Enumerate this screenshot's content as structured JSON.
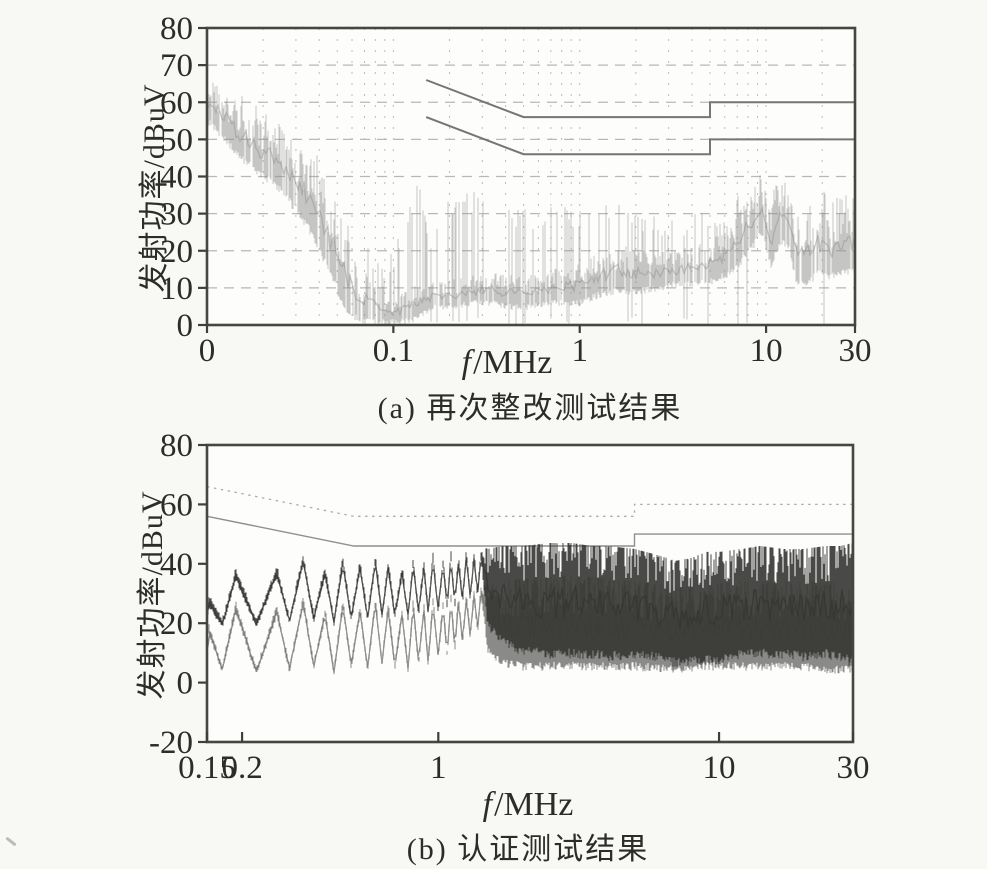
{
  "page": {
    "background": "#f8f8f5"
  },
  "chart_data": [
    {
      "type": "line",
      "id": "a",
      "caption": "(a) 再次整改测试结果",
      "xlabel_var": "f",
      "xlabel_unit": "/MHz",
      "ylabel": "发射功率/dBuV",
      "xscale": "log",
      "xlim": [
        0.01,
        30
      ],
      "ylim": [
        0,
        80
      ],
      "grid": true,
      "legend_position": "none",
      "xticks": [
        {
          "v": 0.01,
          "label": "0"
        },
        {
          "v": 0.1,
          "label": "0.1"
        },
        {
          "v": 1,
          "label": "1"
        },
        {
          "v": 10,
          "label": "10"
        },
        {
          "v": 30,
          "label": "30"
        }
      ],
      "yticks": [
        {
          "v": 0,
          "label": "0"
        },
        {
          "v": 10,
          "label": "10"
        },
        {
          "v": 20,
          "label": "20"
        },
        {
          "v": 30,
          "label": "30"
        },
        {
          "v": 40,
          "label": "40"
        },
        {
          "v": 50,
          "label": "50"
        },
        {
          "v": 60,
          "label": "60"
        },
        {
          "v": 70,
          "label": "70"
        },
        {
          "v": 80,
          "label": "80"
        }
      ],
      "limit_lines": [
        {
          "name": "quasi_peak_limit",
          "style": "solid",
          "color": "#757573",
          "points": [
            [
              0.15,
              66
            ],
            [
              0.5,
              56
            ],
            [
              5,
              56
            ],
            [
              5,
              60
            ],
            [
              30,
              60
            ]
          ]
        },
        {
          "name": "average_limit",
          "style": "solid",
          "color": "#757573",
          "points": [
            [
              0.15,
              56
            ],
            [
              0.5,
              46
            ],
            [
              5,
              46
            ],
            [
              5,
              50
            ],
            [
              30,
              50
            ]
          ]
        }
      ],
      "series": [
        {
          "name": "emission_trace",
          "color": "#8e8e8c",
          "opacity": 0.5,
          "top_bias": 0.5,
          "gap_p": 0.15,
          "envelope": [
            [
              0.01,
              54,
              66,
              66,
              0
            ],
            [
              0.012,
              50,
              63,
              63,
              0
            ],
            [
              0.015,
              44,
              59,
              60,
              0.2
            ],
            [
              0.019,
              40,
              55,
              56,
              0.2
            ],
            [
              0.024,
              36,
              52,
              53,
              0.2
            ],
            [
              0.03,
              30,
              49,
              50,
              0.2
            ],
            [
              0.038,
              22,
              42,
              44,
              0.2
            ],
            [
              0.048,
              10,
              32,
              34,
              0.2
            ],
            [
              0.058,
              2,
              22,
              26,
              0.2
            ],
            [
              0.068,
              0,
              12,
              18,
              0.2
            ],
            [
              0.078,
              0,
              16,
              20,
              0.2
            ],
            [
              0.088,
              0,
              7,
              12,
              0.15
            ],
            [
              0.1,
              0,
              6,
              18,
              0.25
            ],
            [
              0.115,
              0,
              9,
              26,
              0.3
            ],
            [
              0.135,
              1,
              11,
              36,
              0.25
            ],
            [
              0.16,
              4,
              11,
              22,
              0.25
            ],
            [
              0.2,
              4,
              12,
              32,
              0.3
            ],
            [
              0.26,
              5,
              13,
              33,
              0.3
            ],
            [
              0.33,
              5,
              14,
              32,
              0.3
            ],
            [
              0.42,
              4,
              13,
              30,
              0.28
            ],
            [
              0.52,
              4,
              13,
              28,
              0.28
            ],
            [
              0.65,
              5,
              14,
              29,
              0.3
            ],
            [
              0.8,
              5,
              15,
              30,
              0.3
            ],
            [
              1.0,
              5,
              16,
              29,
              0.32
            ],
            [
              1.25,
              7,
              19,
              30,
              0.35
            ],
            [
              1.6,
              8,
              21,
              30,
              0.35
            ],
            [
              2.0,
              8,
              20,
              28,
              0.3
            ],
            [
              2.6,
              9,
              19,
              26,
              0.3
            ],
            [
              3.3,
              10,
              20,
              25,
              0.28
            ],
            [
              4.2,
              10,
              21,
              27,
              0.28
            ],
            [
              5.2,
              11,
              23,
              28,
              0.28
            ],
            [
              6.5,
              13,
              27,
              31,
              0.25
            ],
            [
              8.0,
              18,
              34,
              36,
              0.2
            ],
            [
              9.5,
              24,
              41,
              41,
              0
            ],
            [
              10.6,
              15,
              30,
              33,
              0.2
            ],
            [
              11.8,
              21,
              37,
              38,
              0
            ],
            [
              13.0,
              21,
              38,
              38,
              0
            ],
            [
              14.5,
              11,
              29,
              32,
              0.2
            ],
            [
              16.5,
              10,
              28,
              32,
              0.25
            ],
            [
              19,
              13,
              31,
              34,
              0.22
            ],
            [
              22,
              12,
              29,
              33,
              0.25
            ],
            [
              26,
              13,
              30,
              33,
              0.25
            ],
            [
              30,
              14,
              30,
              32,
              0.2
            ]
          ]
        }
      ]
    },
    {
      "type": "line",
      "id": "b",
      "caption": "(b) 认证测试结果",
      "xlabel_var": "f",
      "xlabel_unit": "/MHz",
      "ylabel": "发射功率/dBuV",
      "xscale": "log",
      "xlim": [
        0.15,
        30
      ],
      "ylim": [
        -20,
        80
      ],
      "grid": false,
      "legend_position": "none",
      "xticks": [
        {
          "v": 0.15,
          "label": "0.15"
        },
        {
          "v": 0.2,
          "label": "0.2"
        },
        {
          "v": 1,
          "label": "1"
        },
        {
          "v": 10,
          "label": "10"
        },
        {
          "v": 30,
          "label": "30"
        }
      ],
      "yticks": [
        {
          "v": -20,
          "label": "-20"
        },
        {
          "v": 0,
          "label": "0"
        },
        {
          "v": 20,
          "label": "20"
        },
        {
          "v": 40,
          "label": "40"
        },
        {
          "v": 60,
          "label": "60"
        },
        {
          "v": 80,
          "label": "80"
        }
      ],
      "limit_lines": [
        {
          "name": "quasi_peak_limit",
          "style": "dotted",
          "color": "#acacaa",
          "points": [
            [
              0.15,
              66
            ],
            [
              0.5,
              56
            ],
            [
              5,
              56
            ],
            [
              5,
              60
            ],
            [
              30,
              60
            ]
          ]
        },
        {
          "name": "average_limit",
          "style": "solid",
          "color": "#8f8f8d",
          "points": [
            [
              0.15,
              56
            ],
            [
              0.5,
              46
            ],
            [
              5,
              46
            ],
            [
              5,
              50
            ],
            [
              30,
              50
            ]
          ]
        }
      ],
      "series": [
        {
          "name": "average_trace",
          "color": "#757573",
          "opacity": 0.85,
          "top_bias": 0.6,
          "gap_p": 0,
          "envelope": [
            [
              0.15,
              2,
              5
            ],
            [
              0.152,
              16,
              20
            ],
            [
              0.17,
              3,
              6
            ],
            [
              0.19,
              23,
              27
            ],
            [
              0.225,
              2,
              5
            ],
            [
              0.266,
              22,
              26
            ],
            [
              0.295,
              3,
              6
            ],
            [
              0.33,
              25,
              29
            ],
            [
              0.36,
              4,
              7
            ],
            [
              0.395,
              21,
              25
            ],
            [
              0.425,
              2,
              5
            ],
            [
              0.457,
              24,
              28
            ],
            [
              0.49,
              4,
              7
            ],
            [
              0.526,
              22,
              26
            ],
            [
              0.56,
              3,
              6
            ],
            [
              0.597,
              25,
              29
            ],
            [
              0.63,
              5,
              8
            ],
            [
              0.663,
              23,
              27
            ],
            [
              0.7,
              4,
              7
            ],
            [
              0.743,
              21,
              25
            ],
            [
              0.78,
              3,
              6
            ],
            [
              0.814,
              24,
              28
            ],
            [
              0.85,
              5,
              8
            ],
            [
              0.888,
              23,
              27
            ],
            [
              0.92,
              5,
              8
            ],
            [
              0.957,
              25,
              29
            ],
            [
              1.0,
              7,
              10
            ],
            [
              1.039,
              24,
              28
            ],
            [
              1.075,
              8,
              11
            ],
            [
              1.109,
              26,
              30
            ],
            [
              1.145,
              10,
              13
            ],
            [
              1.18,
              26,
              30
            ],
            [
              1.22,
              12,
              15
            ],
            [
              1.26,
              27,
              31
            ],
            [
              1.3,
              14,
              17
            ],
            [
              1.34,
              28,
              32
            ],
            [
              1.38,
              16,
              19
            ],
            [
              1.42,
              29,
              33
            ],
            [
              1.5,
              10,
              32
            ],
            [
              1.7,
              5,
              33
            ],
            [
              2,
              4,
              34
            ],
            [
              3,
              4,
              35
            ],
            [
              4,
              4,
              34
            ],
            [
              5,
              4,
              33
            ],
            [
              7,
              3,
              31
            ],
            [
              9,
              4,
              32
            ],
            [
              12,
              4,
              33
            ],
            [
              16,
              4,
              33
            ],
            [
              20,
              4,
              33
            ],
            [
              25,
              3,
              33
            ],
            [
              30,
              3,
              32
            ]
          ]
        },
        {
          "name": "quasi_peak_trace",
          "color": "#353533",
          "opacity": 0.9,
          "top_bias": 0.7,
          "gap_p": 0,
          "envelope": [
            [
              0.15,
              18,
              22
            ],
            [
              0.152,
              25,
              29
            ],
            [
              0.17,
              18,
              21
            ],
            [
              0.19,
              34,
              38
            ],
            [
              0.225,
              18,
              21
            ],
            [
              0.266,
              35,
              39
            ],
            [
              0.295,
              19,
              22
            ],
            [
              0.33,
              39,
              43
            ],
            [
              0.36,
              20,
              23
            ],
            [
              0.395,
              35,
              39
            ],
            [
              0.425,
              19,
              22
            ],
            [
              0.457,
              38,
              42
            ],
            [
              0.49,
              20,
              23
            ],
            [
              0.526,
              37,
              41
            ],
            [
              0.56,
              20,
              23
            ],
            [
              0.597,
              39,
              43
            ],
            [
              0.63,
              21,
              24
            ],
            [
              0.663,
              37,
              41
            ],
            [
              0.7,
              21,
              24
            ],
            [
              0.743,
              35,
              39
            ],
            [
              0.78,
              21,
              24
            ],
            [
              0.814,
              38,
              42
            ],
            [
              0.85,
              22,
              25
            ],
            [
              0.888,
              37,
              41
            ],
            [
              0.92,
              22,
              25
            ],
            [
              0.957,
              39,
              43
            ],
            [
              1.0,
              23,
              26
            ],
            [
              1.039,
              38,
              42
            ],
            [
              1.075,
              24,
              27
            ],
            [
              1.109,
              40,
              44
            ],
            [
              1.145,
              25,
              28
            ],
            [
              1.18,
              39,
              43
            ],
            [
              1.22,
              26,
              29
            ],
            [
              1.26,
              41,
              45
            ],
            [
              1.3,
              27,
              30
            ],
            [
              1.34,
              40,
              44
            ],
            [
              1.38,
              28,
              31
            ],
            [
              1.42,
              41,
              45
            ],
            [
              1.5,
              18,
              44
            ],
            [
              1.7,
              12,
              45
            ],
            [
              2,
              9,
              45
            ],
            [
              2.5,
              8,
              46
            ],
            [
              3,
              8,
              46
            ],
            [
              3.5,
              8,
              45
            ],
            [
              4,
              7,
              45
            ],
            [
              5,
              8,
              44
            ],
            [
              6,
              7,
              42
            ],
            [
              7,
              5,
              40
            ],
            [
              8,
              6,
              41
            ],
            [
              9,
              6,
              43
            ],
            [
              10,
              6,
              43
            ],
            [
              12,
              8,
              44
            ],
            [
              14,
              8,
              45
            ],
            [
              17,
              8,
              44
            ],
            [
              20,
              7,
              44
            ],
            [
              24,
              8,
              45
            ],
            [
              27,
              7,
              45
            ],
            [
              30,
              5,
              46
            ]
          ]
        }
      ]
    }
  ]
}
